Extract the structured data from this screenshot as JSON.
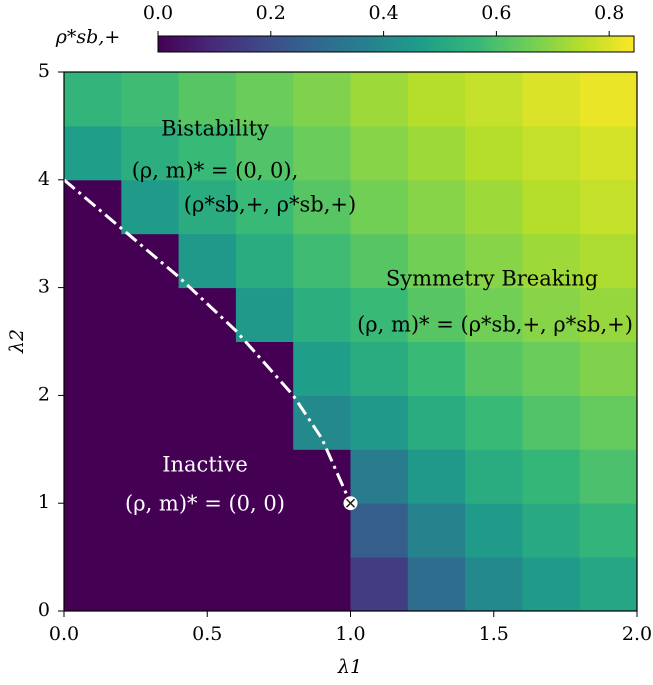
{
  "chart_data": {
    "type": "heatmap",
    "xlabel": "λ1",
    "ylabel": "λ2",
    "colorbar_label": "ρ*sb,+",
    "x_edges": [
      0,
      0.2,
      0.4,
      0.6,
      0.8,
      1.0,
      1.2,
      1.4,
      1.6,
      1.8,
      2.0
    ],
    "y_edges": [
      0,
      0.5,
      1.0,
      1.5,
      2.0,
      2.5,
      3.0,
      3.5,
      4.0,
      4.5,
      5.0
    ],
    "z": [
      [
        0,
        0,
        0,
        0,
        0,
        0.15,
        0.3,
        0.4,
        0.46,
        0.5
      ],
      [
        0,
        0,
        0,
        0,
        0,
        0.25,
        0.38,
        0.46,
        0.51,
        0.55
      ],
      [
        0,
        0,
        0,
        0,
        0,
        0.35,
        0.45,
        0.52,
        0.56,
        0.6
      ],
      [
        0,
        0,
        0,
        0,
        0.4,
        0.45,
        0.52,
        0.57,
        0.61,
        0.64
      ],
      [
        0,
        0,
        0,
        0,
        0.47,
        0.52,
        0.57,
        0.62,
        0.65,
        0.68
      ],
      [
        0,
        0,
        0,
        0.45,
        0.53,
        0.57,
        0.62,
        0.66,
        0.69,
        0.71
      ],
      [
        0,
        0,
        0.45,
        0.52,
        0.58,
        0.62,
        0.66,
        0.69,
        0.72,
        0.74
      ],
      [
        0,
        0.46,
        0.52,
        0.57,
        0.62,
        0.66,
        0.69,
        0.72,
        0.75,
        0.77
      ],
      [
        0.47,
        0.53,
        0.57,
        0.61,
        0.65,
        0.69,
        0.72,
        0.75,
        0.77,
        0.79
      ],
      [
        0.55,
        0.58,
        0.62,
        0.65,
        0.68,
        0.72,
        0.75,
        0.77,
        0.8,
        0.82
      ]
    ],
    "colormap": "viridis",
    "clim": [
      0,
      0.844
    ],
    "cticks": [
      {
        "value": 0,
        "label": "0.0"
      },
      0.2,
      0.4,
      0.6,
      0.8
    ],
    "xlim": [
      0,
      2
    ],
    "ylim": [
      0,
      5
    ],
    "xticks": [
      {
        "value": 0,
        "label": "0.0"
      },
      0.5,
      {
        "value": 1,
        "label": "1.0"
      },
      1.5,
      {
        "value": 2,
        "label": "2.0"
      }
    ],
    "yticks": [
      0,
      1,
      2,
      3,
      4,
      5
    ],
    "boundary": {
      "x": [
        0,
        0.2,
        0.4,
        0.6,
        0.8,
        0.9,
        0.95,
        1.0
      ],
      "y": [
        4.0,
        3.55,
        3.1,
        2.6,
        2.0,
        1.6,
        1.3,
        1.0
      ]
    },
    "marker": {
      "x": 1,
      "y": 1
    },
    "annotations": [
      "Bistability",
      "(ρ, m)* = (0, 0),",
      "(ρ*sb,+, ρ*sb,+)",
      "Symmetry Breaking",
      "(ρ, m)* = (ρ*sb,+, ρ*sb,+)",
      "Inactive",
      "(ρ, m)* = (0, 0)"
    ]
  }
}
